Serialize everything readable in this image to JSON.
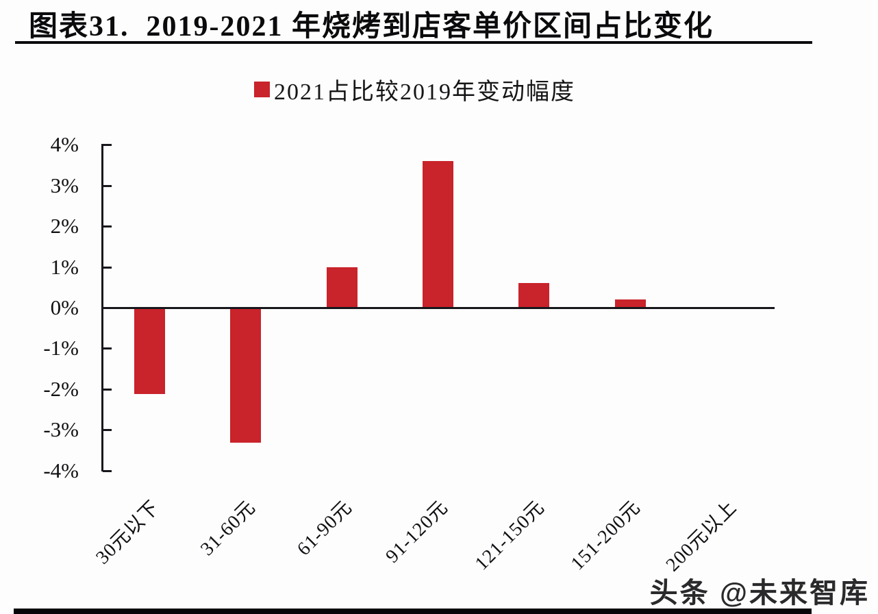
{
  "figure": {
    "title": "图表31.  2019-2021 年烧烤到店客单价区间占比变化"
  },
  "legend": {
    "label": "2021占比较2019年变动幅度"
  },
  "watermark": {
    "text": "头条 @未来智库"
  },
  "colors": {
    "bar": "#c9232b",
    "axis": "#17171c",
    "text": "#101013",
    "title": "#0b0b0d"
  },
  "chart_data": {
    "type": "bar",
    "title": "2021占比较2019年变动幅度",
    "categories": [
      "30元以下",
      "31-60元",
      "61-90元",
      "91-120元",
      "121-150元",
      "151-200元",
      "200元以上"
    ],
    "values": [
      -2.1,
      -3.3,
      1.0,
      3.6,
      0.6,
      0.2,
      0.0
    ],
    "unit": "%",
    "xlabel": "",
    "ylabel": "",
    "ylim": [
      -4,
      4
    ],
    "y_tick_step": 1,
    "y_tick_labels": [
      "4%",
      "3%",
      "2%",
      "1%",
      "0%",
      "-1%",
      "-2%",
      "-3%",
      "-4%"
    ],
    "grid": false,
    "legend_position": "top-center",
    "zero_baseline": true
  }
}
